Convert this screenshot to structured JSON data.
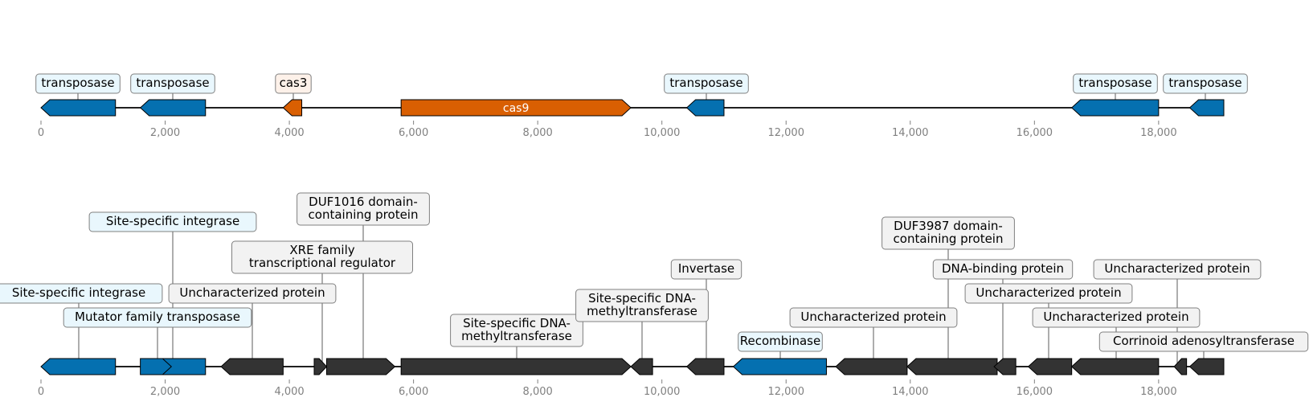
{
  "colors": {
    "transposon": "#0570b0",
    "cas": "#d95f02",
    "other": "#333333",
    "label_blue_bg": "#e9f7fd",
    "label_orange_bg": "#fdf1e9",
    "label_gray_bg": "#f2f2f2",
    "axis_text": "#808080"
  },
  "tick_labels": [
    "0",
    "2,000",
    "4,000",
    "6,000",
    "8,000",
    "10,000",
    "12,000",
    "14,000",
    "16,000",
    "18,000"
  ],
  "tick_values": [
    0,
    2000,
    4000,
    6000,
    8000,
    10000,
    12000,
    14000,
    16000,
    18000
  ],
  "tracks": [
    {
      "length": 19050,
      "genes": [
        {
          "start": 0,
          "end": 1200,
          "strand": -1,
          "color": "transposon",
          "label": "transposase",
          "label_pos": "above"
        },
        {
          "start": 1600,
          "end": 2650,
          "strand": -1,
          "color": "transposon",
          "label": "transposase",
          "label_pos": "above"
        },
        {
          "start": 3900,
          "end": 4200,
          "strand": -1,
          "color": "cas",
          "label": "cas3",
          "label_pos": "above"
        },
        {
          "start": 5800,
          "end": 9500,
          "strand": 1,
          "color": "cas",
          "label": "cas9",
          "label_pos": "inside"
        },
        {
          "start": 10400,
          "end": 11000,
          "strand": -1,
          "color": "transposon",
          "label": "transposase",
          "label_pos": "above"
        },
        {
          "start": 16600,
          "end": 18000,
          "strand": -1,
          "color": "transposon",
          "label": "transposase",
          "label_pos": "above"
        },
        {
          "start": 18500,
          "end": 19050,
          "strand": -1,
          "color": "transposon",
          "label": "transposase",
          "label_pos": "above"
        }
      ]
    },
    {
      "length": 19050,
      "genes": [
        {
          "start": 0,
          "end": 1200,
          "strand": -1,
          "color": "transposon",
          "label": "Site-specific integrase",
          "label_pos": "above"
        },
        {
          "start": 1600,
          "end": 2650,
          "strand": -1,
          "color": "transposon",
          "label": "Site-specific integrase",
          "label_pos": "above"
        },
        {
          "start": 1600,
          "end": 2100,
          "strand": 1,
          "color": "transposon",
          "label": "Mutator family transposase",
          "label_pos": "above"
        },
        {
          "start": 2900,
          "end": 3900,
          "strand": -1,
          "color": "other",
          "label": "Uncharacterized protein",
          "label_pos": "above"
        },
        {
          "start": 4400,
          "end": 4600,
          "strand": 1,
          "color": "other",
          "label": "XRE family\ntranscriptional regulator",
          "label_pos": "above"
        },
        {
          "start": 4600,
          "end": 5700,
          "strand": 1,
          "color": "other",
          "label": "DUF1016 domain-\ncontaining protein",
          "label_pos": "above"
        },
        {
          "start": 5800,
          "end": 9500,
          "strand": 1,
          "color": "other",
          "label": "Site-specific DNA-\nmethyltransferase",
          "label_pos": "above"
        },
        {
          "start": 9500,
          "end": 9850,
          "strand": -1,
          "color": "other",
          "label": "Site-specific DNA-\nmethyltransferase",
          "label_pos": "above"
        },
        {
          "start": 10400,
          "end": 11000,
          "strand": -1,
          "color": "other",
          "label": "Invertase",
          "label_pos": "above"
        },
        {
          "start": 11150,
          "end": 12650,
          "strand": -1,
          "color": "transposon",
          "label": "Recombinase",
          "label_pos": "above"
        },
        {
          "start": 12800,
          "end": 13950,
          "strand": -1,
          "color": "other",
          "label": "Uncharacterized protein",
          "label_pos": "above"
        },
        {
          "start": 13950,
          "end": 15400,
          "strand": -1,
          "color": "other",
          "label": "DUF3987 domain-\ncontaining protein",
          "label_pos": "above"
        },
        {
          "start": 15350,
          "end": 15700,
          "strand": -1,
          "color": "other",
          "label": "DNA-binding protein",
          "label_pos": "above"
        },
        {
          "start": 15900,
          "end": 16600,
          "strand": -1,
          "color": "other",
          "label": "Uncharacterized protein",
          "label_pos": "above"
        },
        {
          "start": 16600,
          "end": 18000,
          "strand": -1,
          "color": "other",
          "label": "Uncharacterized protein",
          "label_pos": "above"
        },
        {
          "start": 18250,
          "end": 18450,
          "strand": -1,
          "color": "other",
          "label": "Uncharacterized protein",
          "label_pos": "above"
        },
        {
          "start": 18500,
          "end": 19050,
          "strand": -1,
          "color": "other",
          "label": "Corrinoid adenosyltransferase",
          "label_pos": "above"
        }
      ]
    }
  ]
}
